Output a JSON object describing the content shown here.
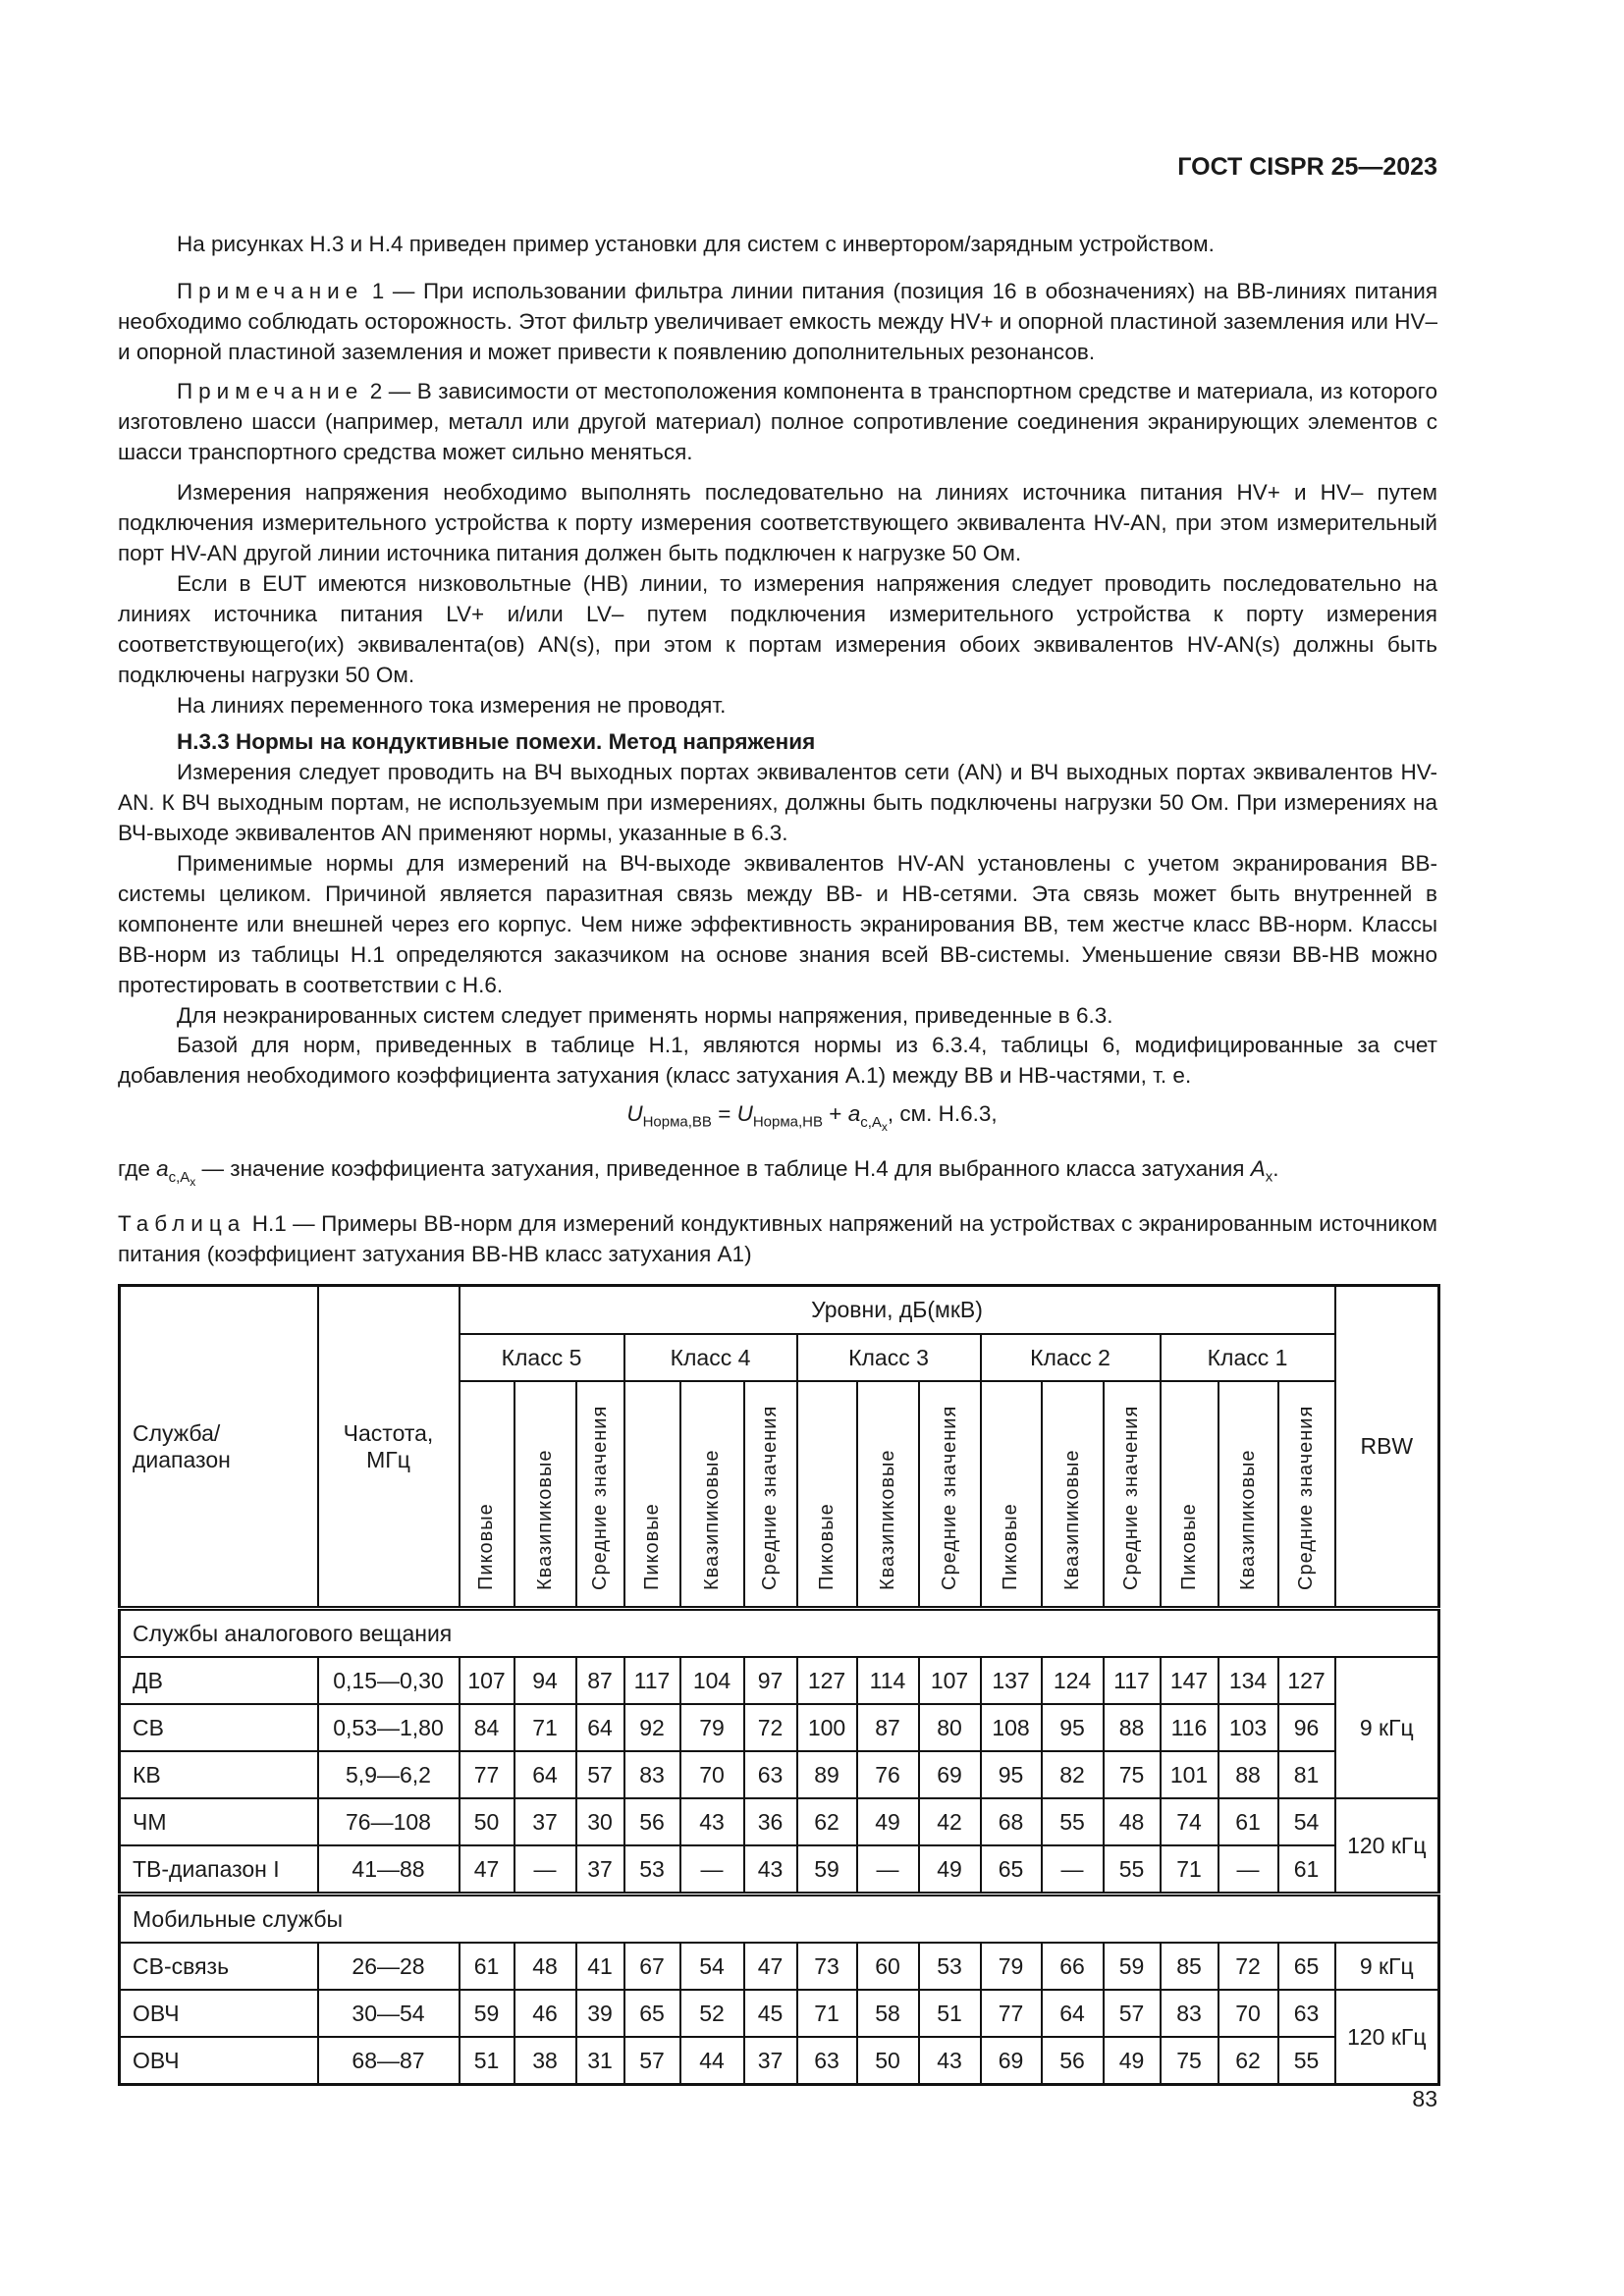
{
  "header": {
    "doc_code": "ГОСТ CISPR 25—2023"
  },
  "paragraphs": {
    "p1": "На рисунках Н.3 и Н.4 приведен пример установки для систем с инвертором/зарядным устройством.",
    "note1_label": "Примечание",
    "note1_text": " 1 — При использовании фильтра линии питания (позиция 16 в обозначениях) на ВВ-линиях питания необходимо соблюдать осторожность. Этот фильтр увеличивает емкость между HV+ и опорной пластиной заземления или HV– и опорной пластиной заземления и может привести к появлению дополнительных резонансов.",
    "note2_label": "Примечание",
    "note2_text": " 2 — В зависимости от местоположения компонента в транспортном средстве и материала, из которого изготовлено шасси (например, металл или другой материал) полное сопротивление соединения экранирующих элементов с шасси транспортного средства может сильно меняться.",
    "p2": "Измерения напряжения необходимо выполнять последовательно на линиях источника питания HV+ и HV– путем подключения измерительного устройства к порту измерения соответствующего эквивалента HV-AN, при этом измерительный порт HV-AN другой линии источника питания должен быть подключен к нагрузке 50 Ом.",
    "p3": "Если в EUT имеются низковольтные (НВ) линии, то измерения напряжения следует проводить последовательно на линиях источника питания LV+ и/или LV– путем подключения измерительного устройства к порту измерения соответствующего(их) эквивалента(ов) AN(s), при этом к портам измерения обоих эквивалентов HV-AN(s) должны быть подключены нагрузки 50 Ом.",
    "p4": "На линиях переменного тока измерения не проводят.",
    "heading": "Н.3.3 Нормы на кондуктивные помехи. Метод напряжения",
    "p5": "Измерения следует проводить на ВЧ выходных портах эквивалентов сети (AN) и ВЧ выходных портах эквивалентов HV-AN. К ВЧ выходным портам, не используемым при измерениях, должны быть подключены нагрузки 50 Ом. При измерениях на ВЧ-выходе эквивалентов AN применяют нормы, указанные в 6.3.",
    "p6": "Применимые нормы для измерений на ВЧ-выходе эквивалентов HV-AN установлены с учетом экранирования ВВ-системы целиком. Причиной является паразитная связь между ВВ- и НВ-сетями. Эта связь может быть внутренней в компоненте или внешней через его корпус. Чем ниже эффективность экранирования ВВ, тем жестче класс ВВ-норм. Классы ВВ-норм из таблицы Н.1 определяются заказчиком на основе знания всей ВВ-системы. Уменьшение связи ВВ-НВ можно протестировать в соответствии с Н.6.",
    "p7": "Для неэкранированных систем следует применять нормы напряжения, приведенные в 6.3.",
    "p8": "Базой для норм, приведенных в таблице Н.1, являются нормы из 6.3.4, таблицы 6, модифицированные за счет добавления необходимого коэффициента затухания (класс затухания А.1) между ВВ и НВ-частями, т. е."
  },
  "formula": {
    "u": "U",
    "sub1": "Норма,ВВ",
    "eq": " = ",
    "sub2": "Норма,НВ",
    "plus": " + ",
    "a": "a",
    "sub3": "c,A",
    "subsub": "x",
    "tail": ", см. Н.6.3,"
  },
  "where": {
    "prefix": "где ",
    "a": "a",
    "sub": "c,A",
    "subsub": "x",
    "text": " — значение коэффициента затухания, приведенное в таблице Н.4 для выбранного класса затухания ",
    "ax": "A",
    "ax_sub": "x",
    "end": "."
  },
  "table_caption": {
    "label": "Таблица",
    "text": " Н.1 — Примеры ВВ-норм для измерений кондуктивных напряжений на устройствах с экранированным источником питания (коэффициент затухания ВВ-НВ класс затухания А1)"
  },
  "table": {
    "col_service": "Служба/диапазон",
    "col_freq": "Частота, МГц",
    "levels": "Уровни, дБ(мкВ)",
    "col_rbw": "RBW",
    "classes": [
      "Класс 5",
      "Класс 4",
      "Класс 3",
      "Класс 2",
      "Класс 1"
    ],
    "detectors": [
      "Пиковые",
      "Квазипиковые",
      "Средние значения"
    ],
    "sections": [
      {
        "title": "Службы аналогового вещания",
        "rows": [
          {
            "name": "ДВ",
            "freq": "0,15—0,30",
            "values": [
              "107",
              "94",
              "87",
              "117",
              "104",
              "97",
              "127",
              "114",
              "107",
              "137",
              "124",
              "117",
              "147",
              "134",
              "127"
            ]
          },
          {
            "name": "СВ",
            "freq": "0,53—1,80",
            "values": [
              "84",
              "71",
              "64",
              "92",
              "79",
              "72",
              "100",
              "87",
              "80",
              "108",
              "95",
              "88",
              "116",
              "103",
              "96"
            ]
          },
          {
            "name": "КВ",
            "freq": "5,9—6,2",
            "values": [
              "77",
              "64",
              "57",
              "83",
              "70",
              "63",
              "89",
              "76",
              "69",
              "95",
              "82",
              "75",
              "101",
              "88",
              "81"
            ]
          },
          {
            "name": "ЧМ",
            "freq": "76—108",
            "values": [
              "50",
              "37",
              "30",
              "56",
              "43",
              "36",
              "62",
              "49",
              "42",
              "68",
              "55",
              "48",
              "74",
              "61",
              "54"
            ]
          },
          {
            "name": "ТВ-диапазон I",
            "freq": "41—88",
            "values": [
              "47",
              "—",
              "37",
              "53",
              "—",
              "43",
              "59",
              "—",
              "49",
              "65",
              "—",
              "55",
              "71",
              "—",
              "61"
            ]
          }
        ],
        "rbw": [
          {
            "label": "9 кГц",
            "rows": 3
          },
          {
            "label": "120 кГц",
            "rows": 2
          }
        ]
      },
      {
        "title": "Мобильные службы",
        "rows": [
          {
            "name": "СВ-связь",
            "freq": "26—28",
            "values": [
              "61",
              "48",
              "41",
              "67",
              "54",
              "47",
              "73",
              "60",
              "53",
              "79",
              "66",
              "59",
              "85",
              "72",
              "65"
            ]
          },
          {
            "name": "ОВЧ",
            "freq": "30—54",
            "values": [
              "59",
              "46",
              "39",
              "65",
              "52",
              "45",
              "71",
              "58",
              "51",
              "77",
              "64",
              "57",
              "83",
              "70",
              "63"
            ]
          },
          {
            "name": "ОВЧ",
            "freq": "68—87",
            "values": [
              "51",
              "38",
              "31",
              "57",
              "44",
              "37",
              "63",
              "50",
              "43",
              "69",
              "56",
              "49",
              "75",
              "62",
              "55"
            ]
          }
        ],
        "rbw": [
          {
            "label": "9 кГц",
            "rows": 1
          },
          {
            "label": "120 кГц",
            "rows": 2
          }
        ]
      }
    ]
  },
  "page_number": "83"
}
